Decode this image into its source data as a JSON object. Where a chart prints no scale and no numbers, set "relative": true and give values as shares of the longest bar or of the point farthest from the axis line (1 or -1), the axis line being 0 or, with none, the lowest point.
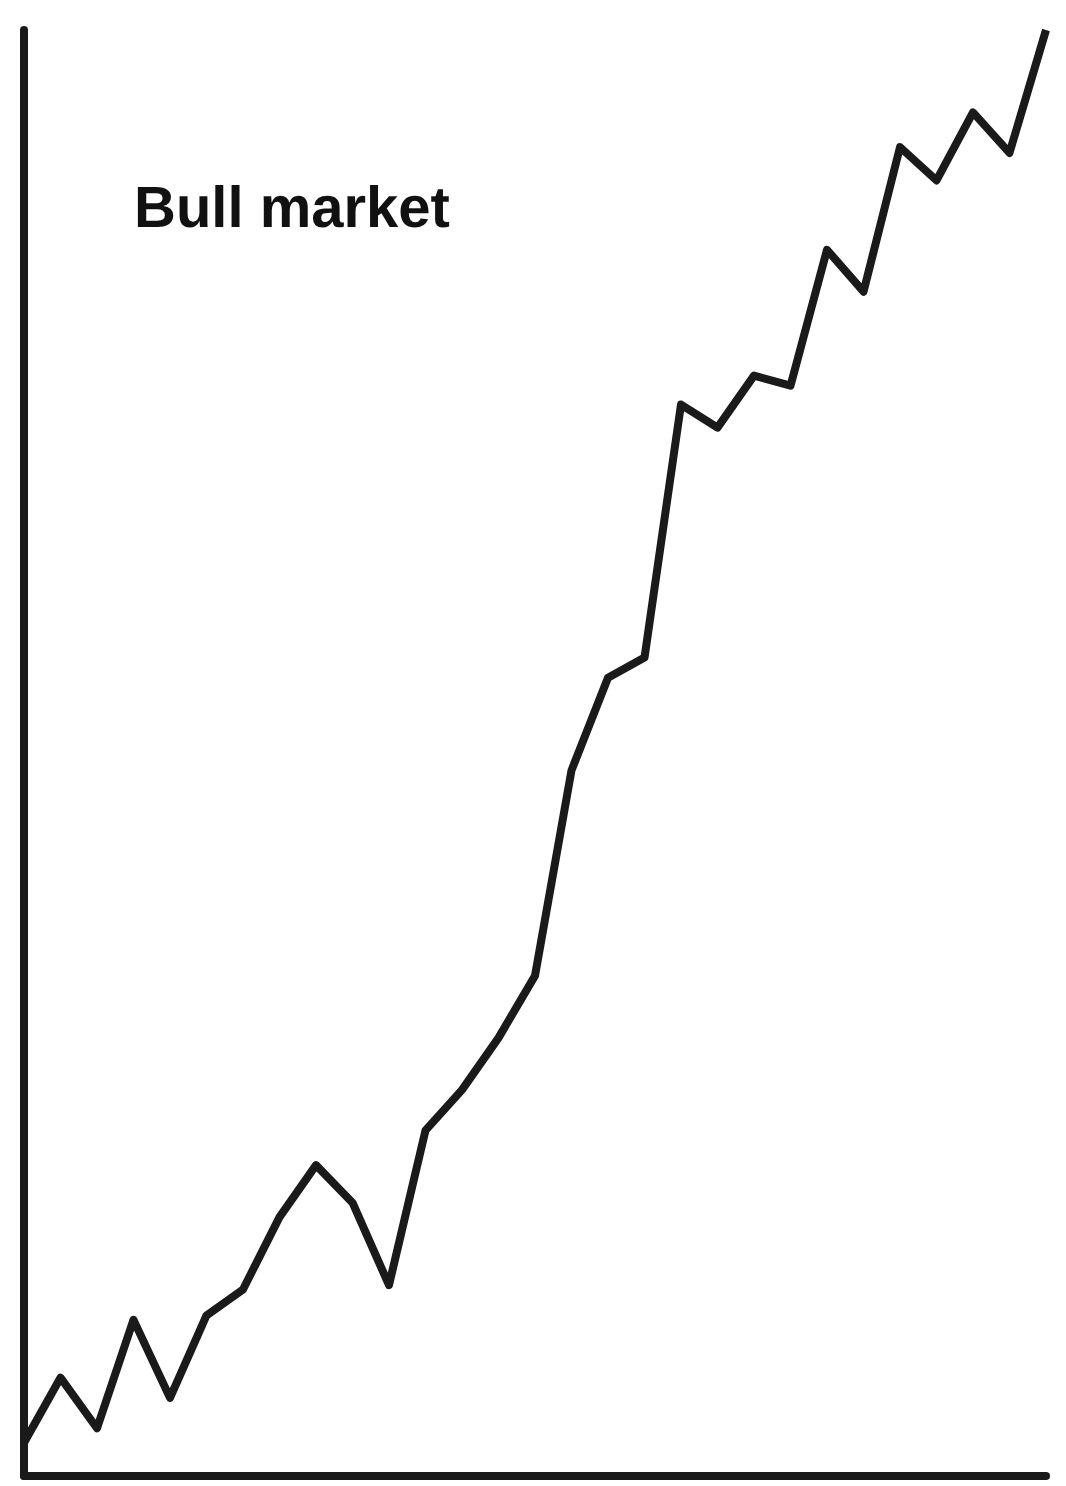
{
  "chart_data": {
    "type": "line",
    "title": "Bull market",
    "relative": true,
    "marker": "none",
    "categories": [
      null,
      null,
      null,
      null,
      null,
      null,
      null,
      null,
      null,
      null,
      null,
      null,
      null,
      null,
      null,
      null,
      null,
      null,
      null,
      null,
      null,
      null,
      null,
      null,
      null,
      null,
      null,
      null,
      null
    ],
    "series": [
      {
        "color": "#1a1a1a",
        "values": [
          0.023,
          0.068,
          0.033,
          0.108,
          0.054,
          0.111,
          0.129,
          0.179,
          0.215,
          0.189,
          0.132,
          0.239,
          0.267,
          0.303,
          0.346,
          0.488,
          0.552,
          0.566,
          0.741,
          0.725,
          0.761,
          0.754,
          0.848,
          0.819,
          0.919,
          0.896,
          0.943,
          0.915,
          1
        ]
      }
    ]
  }
}
